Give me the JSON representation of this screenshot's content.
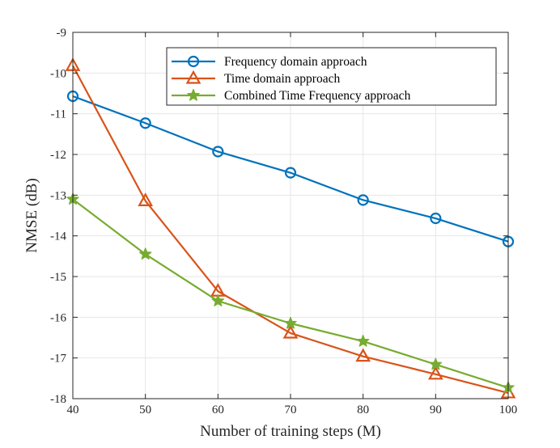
{
  "chart_data": {
    "type": "line",
    "title": "",
    "xlabel": "Number of training steps (M)",
    "ylabel": "NMSE (dB)",
    "x": [
      40,
      50,
      60,
      70,
      80,
      90,
      100
    ],
    "xlim": [
      40,
      100
    ],
    "ylim": [
      -18,
      -9
    ],
    "xticks": [
      40,
      50,
      60,
      70,
      80,
      90,
      100
    ],
    "yticks": [
      -9,
      -10,
      -11,
      -12,
      -13,
      -14,
      -15,
      -16,
      -17,
      -18
    ],
    "xtick_labels": [
      "40",
      "50",
      "60",
      "70",
      "80",
      "90",
      "100"
    ],
    "ytick_labels": [
      "-9",
      "-10",
      "-11",
      "-12",
      "-13",
      "-14",
      "-15",
      "-16",
      "-17",
      "-18"
    ],
    "grid": true,
    "legend_position": "top-right",
    "series": [
      {
        "name": "Frequency domain approach",
        "color": "#0072BD",
        "marker": "circle",
        "values": [
          -10.57,
          -11.23,
          -11.93,
          -12.45,
          -13.12,
          -13.57,
          -14.14
        ]
      },
      {
        "name": "Time domain approach",
        "color": "#D95319",
        "marker": "triangle",
        "values": [
          -9.82,
          -13.14,
          -15.36,
          -16.39,
          -16.96,
          -17.4,
          -17.86
        ]
      },
      {
        "name": "Combined Time Frequency approach",
        "color": "#77AC30",
        "marker": "star",
        "values": [
          -13.1,
          -14.45,
          -15.6,
          -16.15,
          -16.59,
          -17.16,
          -17.73
        ]
      }
    ]
  }
}
